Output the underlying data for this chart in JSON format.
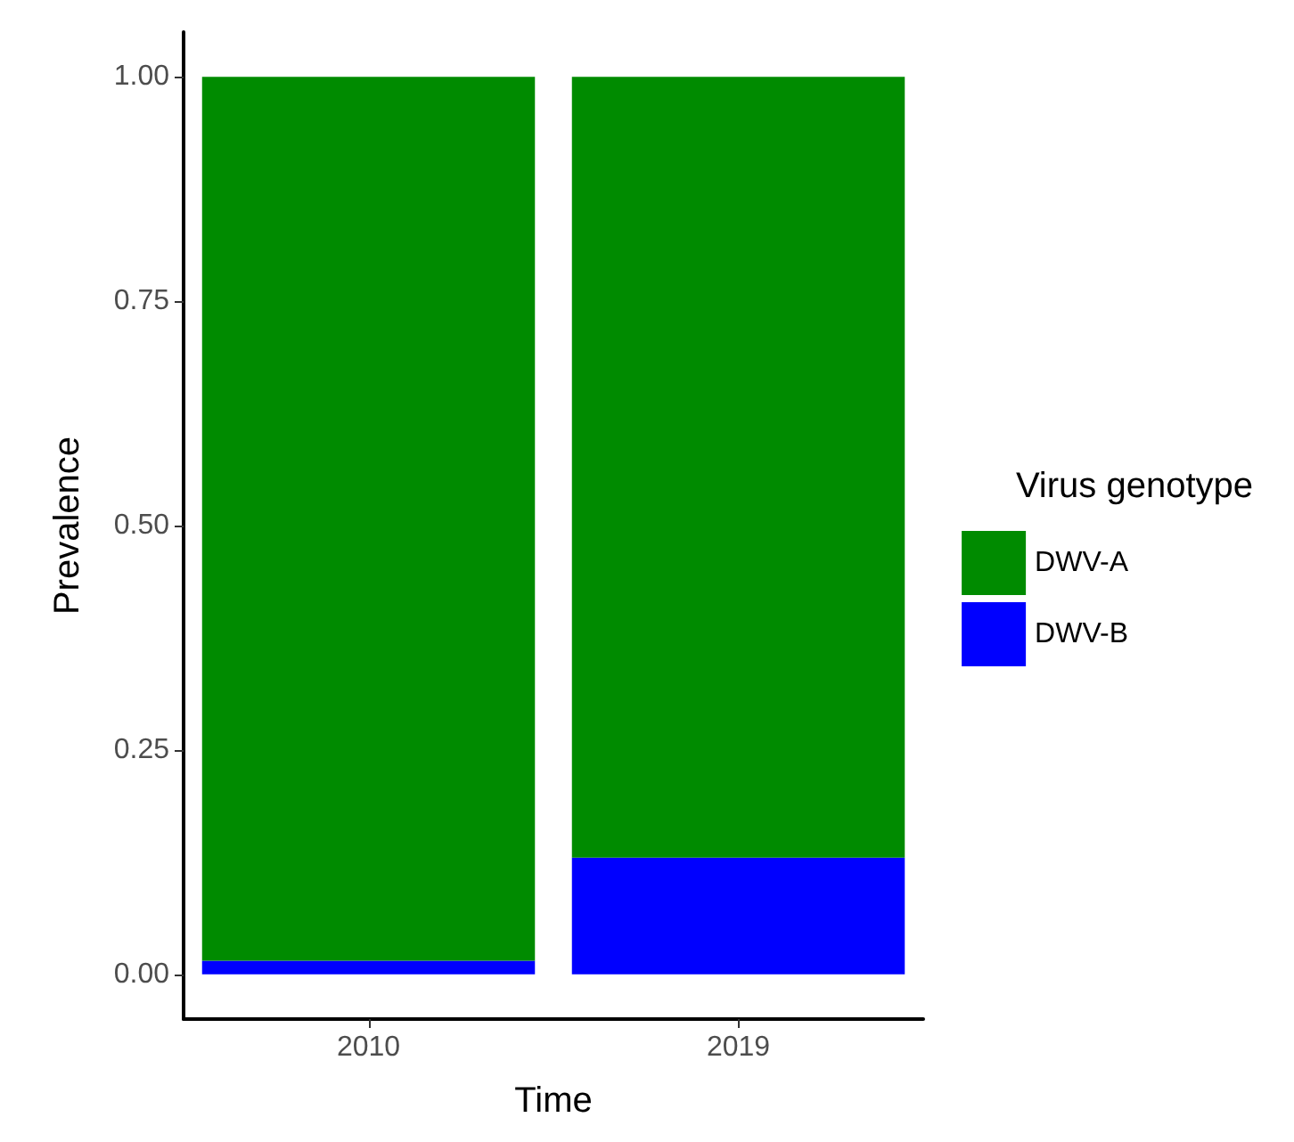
{
  "chart_data": {
    "type": "bar",
    "stacked": true,
    "xlabel": "Time",
    "ylabel": "Prevalence",
    "legend_title": "Virus genotype",
    "legend": "right",
    "grid": false,
    "categories": [
      "2010",
      "2019"
    ],
    "series": [
      {
        "name": "DWV-B",
        "color": "#0000ff",
        "values": [
          0.015,
          0.13
        ]
      },
      {
        "name": "DWV-A",
        "color": "#008b00",
        "values": [
          0.985,
          0.87
        ]
      }
    ],
    "ylim": [
      -0.05,
      1.05
    ],
    "yticks": [
      {
        "value": 0,
        "label": "0.00"
      },
      {
        "value": 0.25,
        "label": "0.25"
      },
      {
        "value": 0.5,
        "label": "0.50"
      },
      {
        "value": 0.75,
        "label": "0.75"
      },
      {
        "value": 1,
        "label": "1.00"
      }
    ]
  }
}
